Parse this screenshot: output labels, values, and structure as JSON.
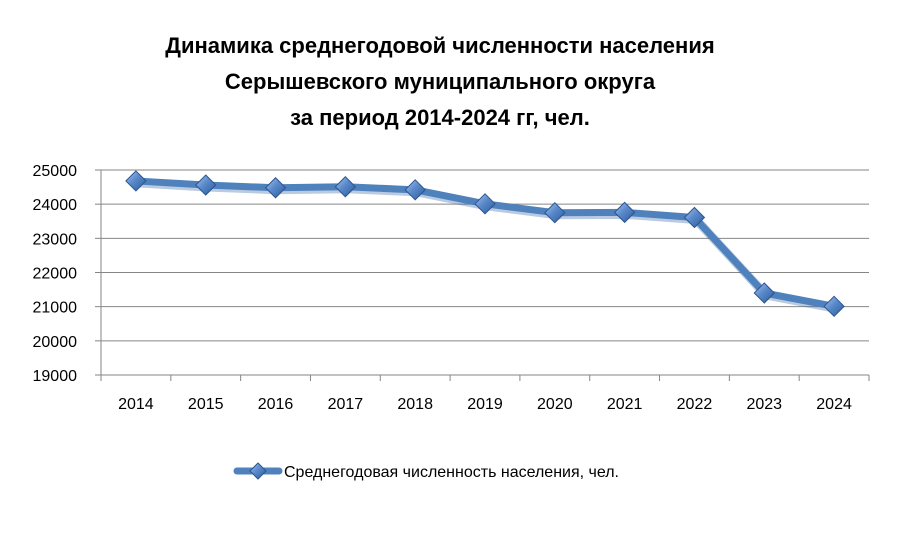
{
  "chart_data": {
    "type": "line",
    "title_lines": [
      "Динамика среднегодовой численности населения",
      "Серышевского муниципального округа",
      "за период 2014-2024 гг, чел."
    ],
    "categories": [
      "2014",
      "2015",
      "2016",
      "2017",
      "2018",
      "2019",
      "2020",
      "2021",
      "2022",
      "2023",
      "2024"
    ],
    "series": [
      {
        "name": "Среднегодовая численность населения, чел.",
        "values": [
          24680,
          24560,
          24480,
          24510,
          24420,
          24010,
          23750,
          23760,
          23610,
          21400,
          21010
        ],
        "color": "#4F81BD",
        "marker": "diamond"
      }
    ],
    "yticks": [
      19000,
      20000,
      21000,
      22000,
      23000,
      24000,
      25000
    ],
    "ylim": [
      19000,
      25000
    ],
    "grid": true,
    "legend_position": "bottom"
  }
}
